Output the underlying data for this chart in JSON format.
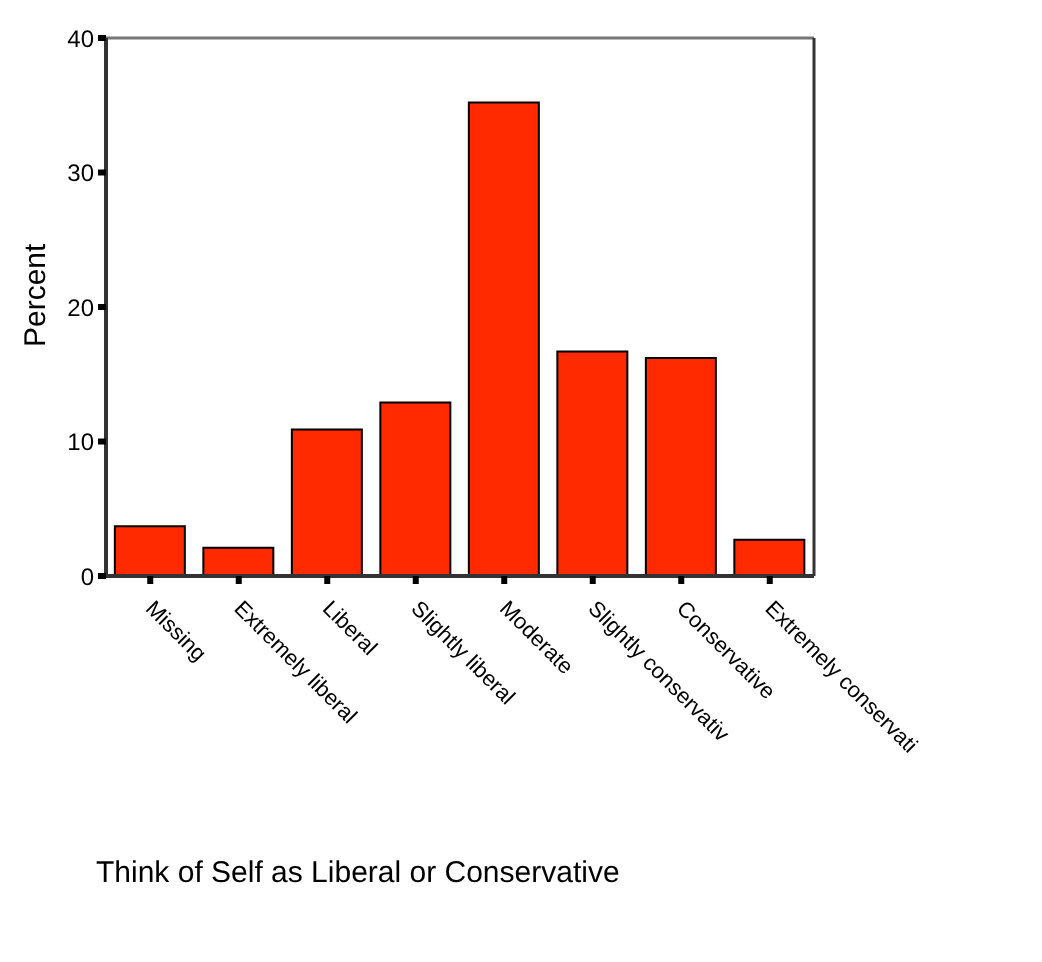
{
  "chart_data": {
    "type": "bar",
    "xlabel": "Think of Self as Liberal or Conservative",
    "ylabel": "Percent",
    "categories": [
      "Missing",
      "Extremely liberal",
      "Liberal",
      "Slightly liberal",
      "Moderate",
      "Slightly conservativ",
      "Conservative",
      "Extremely conservati"
    ],
    "values": [
      3.7,
      2.1,
      10.9,
      12.9,
      35.2,
      16.7,
      16.2,
      2.7
    ],
    "color": "#ff2a00",
    "ylim": [
      0,
      40
    ],
    "yticks": [
      0,
      10,
      20,
      30,
      40
    ],
    "grid": false,
    "legend": false
  }
}
